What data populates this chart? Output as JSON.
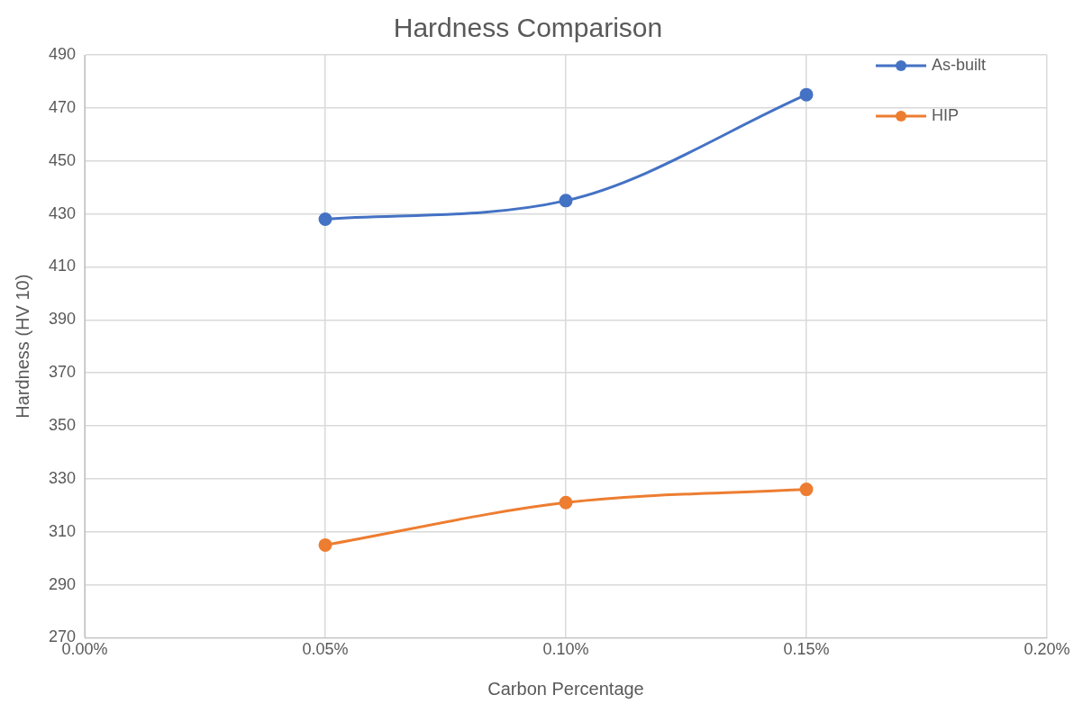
{
  "chart_data": {
    "type": "line",
    "title": "Hardness Comparison",
    "xlabel": "Carbon Percentage",
    "ylabel": "Hardness (HV 10)",
    "x": [
      0.05,
      0.1,
      0.15
    ],
    "series": [
      {
        "name": "As-built",
        "color": "#4472c4",
        "values": [
          428,
          435,
          475
        ]
      },
      {
        "name": "HIP",
        "color": "#ed7d31",
        "values": [
          305,
          321,
          326
        ]
      }
    ],
    "xlim": [
      0,
      0.2
    ],
    "xticks": [
      {
        "value": 0,
        "label": "0.00%"
      },
      {
        "value": 0.05,
        "label": "0.05%"
      },
      {
        "value": 0.1,
        "label": "0.10%"
      },
      {
        "value": 0.15,
        "label": "0.15%"
      },
      {
        "value": 0.2,
        "label": "0.20%"
      }
    ],
    "ylim": [
      270,
      490
    ],
    "yticks": [
      270,
      290,
      310,
      330,
      350,
      370,
      390,
      410,
      430,
      450,
      470,
      490
    ],
    "grid": true,
    "legend": "top right",
    "marker": "circle",
    "line_style": "solid"
  }
}
